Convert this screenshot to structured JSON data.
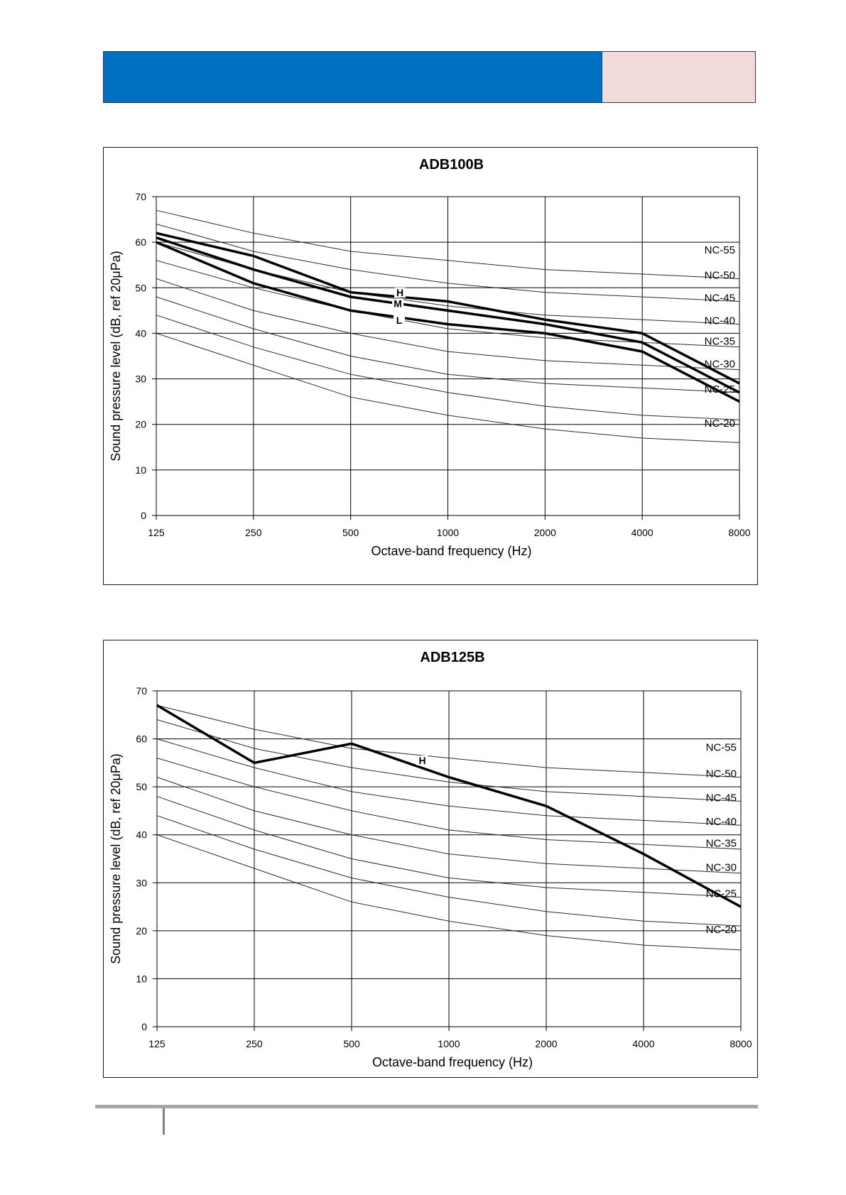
{
  "header": {
    "left_color": "#0070c0",
    "right_color": "#f2dcdb"
  },
  "nc_curves": [
    {
      "name": "NC-55",
      "values": [
        67,
        62,
        58,
        56,
        54,
        53,
        52
      ]
    },
    {
      "name": "NC-50",
      "values": [
        64,
        58,
        54,
        51,
        49,
        48,
        47
      ]
    },
    {
      "name": "NC-45",
      "values": [
        60,
        54,
        49,
        46,
        44,
        43,
        42
      ]
    },
    {
      "name": "NC-40",
      "values": [
        56,
        50,
        45,
        41,
        39,
        38,
        37
      ]
    },
    {
      "name": "NC-35",
      "values": [
        52,
        45,
        40,
        36,
        34,
        33,
        32
      ]
    },
    {
      "name": "NC-30",
      "values": [
        48,
        41,
        35,
        31,
        29,
        28,
        27
      ]
    },
    {
      "name": "NC-25",
      "values": [
        44,
        37,
        31,
        27,
        24,
        22,
        21
      ]
    },
    {
      "name": "NC-20",
      "values": [
        40,
        33,
        26,
        22,
        19,
        17,
        16
      ]
    }
  ],
  "chart_data": [
    {
      "type": "line",
      "title": "ADB100B",
      "xlabel": "Octave-band  frequency  (Hz)",
      "ylabel": "Sound  pressure  level  (dB,  ref 20μPa)",
      "categories": [
        "125",
        "250",
        "500",
        "1000",
        "2000",
        "4000",
        "8000"
      ],
      "yticks": [
        "0",
        "10",
        "20",
        "30",
        "40",
        "50",
        "60",
        "70"
      ],
      "ylim": [
        0,
        70
      ],
      "grid": true,
      "series": [
        {
          "name": "H",
          "values": [
            62,
            57,
            49,
            47,
            43,
            40,
            29
          ]
        },
        {
          "name": "M",
          "values": [
            61,
            54,
            48,
            45,
            42,
            38,
            27
          ]
        },
        {
          "name": "L",
          "values": [
            60,
            51,
            45,
            42,
            40,
            36,
            25
          ]
        }
      ]
    },
    {
      "type": "line",
      "title": "ADB125B",
      "xlabel": "Octave-band  frequency  (Hz)",
      "ylabel": "Sound  pressure  level  (dB,  ref 20μPa)",
      "categories": [
        "125",
        "250",
        "500",
        "1000",
        "2000",
        "4000",
        "8000"
      ],
      "yticks": [
        "0",
        "10",
        "20",
        "30",
        "40",
        "50",
        "60",
        "70"
      ],
      "ylim": [
        0,
        70
      ],
      "grid": true,
      "series": [
        {
          "name": "H",
          "values": [
            67,
            55,
            59,
            52,
            46,
            36,
            25
          ]
        }
      ]
    }
  ]
}
